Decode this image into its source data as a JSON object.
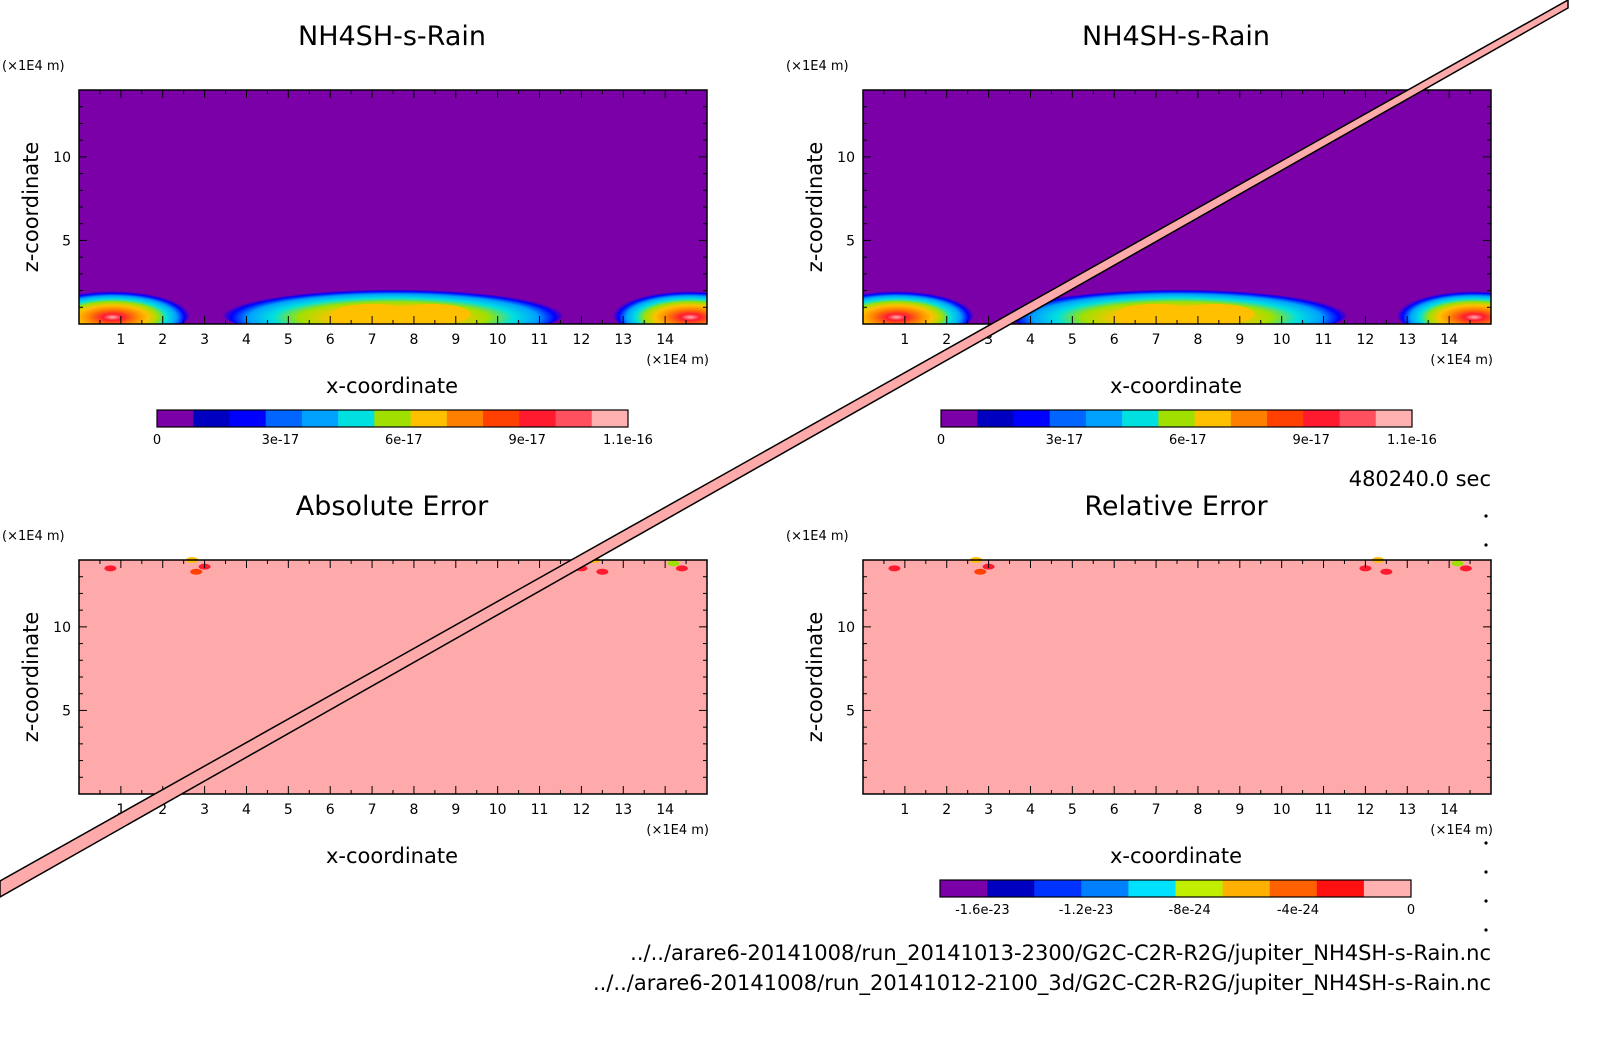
{
  "panels": [
    {
      "id": "top-left",
      "title": "NH4SH-s-Rain",
      "xlabel": "x-coordinate",
      "ylabel": "z-coordinate",
      "x_unit": "(×1E4 m)",
      "y_unit": "(×1E4 m)",
      "x_ticks": [
        "1",
        "2",
        "3",
        "4",
        "5",
        "6",
        "7",
        "8",
        "9",
        "10",
        "11",
        "12",
        "13",
        "14"
      ],
      "y_ticks": [
        "5",
        "10"
      ],
      "field": "rain",
      "colorbar": {
        "colors": [
          "#7b00a8",
          "#0000c0",
          "#0000ff",
          "#0066ff",
          "#00a0ff",
          "#00e0e0",
          "#a0e000",
          "#ffc000",
          "#ff8000",
          "#ff4000",
          "#ff1a30",
          "#ff5060",
          "#ffb0b0"
        ],
        "labels": [
          "0",
          "3e-17",
          "6e-17",
          "9e-17",
          "1.1e-16"
        ]
      }
    },
    {
      "id": "top-right",
      "title": "NH4SH-s-Rain",
      "xlabel": "x-coordinate",
      "ylabel": "z-coordinate",
      "x_unit": "(×1E4 m)",
      "y_unit": "(×1E4 m)",
      "x_ticks": [
        "1",
        "2",
        "3",
        "4",
        "5",
        "6",
        "7",
        "8",
        "9",
        "10",
        "11",
        "12",
        "13",
        "14"
      ],
      "y_ticks": [
        "5",
        "10"
      ],
      "field": "rain",
      "colorbar": {
        "colors": [
          "#7b00a8",
          "#0000c0",
          "#0000ff",
          "#0066ff",
          "#00a0ff",
          "#00e0e0",
          "#a0e000",
          "#ffc000",
          "#ff8000",
          "#ff4000",
          "#ff1a30",
          "#ff5060",
          "#ffb0b0"
        ],
        "labels": [
          "0",
          "3e-17",
          "6e-17",
          "9e-17",
          "1.1e-16"
        ]
      }
    },
    {
      "id": "bottom-left",
      "title": "Absolute Error",
      "xlabel": "x-coordinate",
      "ylabel": "z-coordinate",
      "x_unit": "(×1E4 m)",
      "y_unit": "(×1E4 m)",
      "x_ticks": [
        "1",
        "2",
        "3",
        "4",
        "5",
        "6",
        "7",
        "8",
        "9",
        "10",
        "11",
        "12",
        "13",
        "14"
      ],
      "y_ticks": [
        "5",
        "10"
      ],
      "field": "error"
    },
    {
      "id": "bottom-right",
      "title": "Relative Error",
      "xlabel": "x-coordinate",
      "ylabel": "z-coordinate",
      "x_unit": "(×1E4 m)",
      "y_unit": "(×1E4 m)",
      "x_ticks": [
        "1",
        "2",
        "3",
        "4",
        "5",
        "6",
        "7",
        "8",
        "9",
        "10",
        "11",
        "12",
        "13",
        "14"
      ],
      "y_ticks": [
        "5",
        "10"
      ],
      "field": "error",
      "colorbar": {
        "colors": [
          "#7b00a8",
          "#0000c0",
          "#0033ff",
          "#0080ff",
          "#00e0ff",
          "#c0f000",
          "#ffb000",
          "#ff6000",
          "#ff1010",
          "#ffb0b0"
        ],
        "labels": [
          "-1.6e-23",
          "-1.2e-23",
          "-8e-24",
          "-4e-24",
          "0"
        ]
      }
    }
  ],
  "time_label": "480240.0 sec",
  "file_paths": [
    "../../arare6-20141008/run_20141013-2300/G2C-C2R-R2G/jupiter_NH4SH-s-Rain.nc",
    "../../arare6-20141008/run_20141012-2100_3d/G2C-C2R-R2G/jupiter_NH4SH-s-Rain.nc"
  ],
  "chart_data": [
    {
      "type": "heatmap",
      "title": "NH4SH-s-Rain",
      "xlabel": "x-coordinate",
      "ylabel": "z-coordinate",
      "xlim": [
        0,
        15
      ],
      "ylim": [
        0,
        14
      ],
      "colorbar_range": [
        0,
        1.1e-16
      ],
      "features": [
        {
          "x_center": 0.8,
          "z_top": 1.5,
          "peak": 1.1e-16
        },
        {
          "x_center": 7.5,
          "z_top": 1.6,
          "peak": 8e-17
        },
        {
          "x_center": 14.6,
          "z_top": 1.5,
          "peak": 1.1e-16
        }
      ]
    },
    {
      "type": "heatmap",
      "title": "NH4SH-s-Rain",
      "xlabel": "x-coordinate",
      "ylabel": "z-coordinate",
      "xlim": [
        0,
        15
      ],
      "ylim": [
        0,
        14
      ],
      "colorbar_range": [
        0,
        1.1e-16
      ]
    },
    {
      "type": "heatmap",
      "title": "Absolute Error",
      "xlabel": "x-coordinate",
      "ylabel": "z-coordinate",
      "xlim": [
        0,
        15
      ],
      "ylim": [
        0,
        14
      ]
    },
    {
      "type": "heatmap",
      "title": "Relative Error",
      "xlabel": "x-coordinate",
      "ylabel": "z-coordinate",
      "xlim": [
        0,
        15
      ],
      "ylim": [
        0,
        14
      ],
      "colorbar_range": [
        -1.8e-23,
        0
      ]
    }
  ]
}
